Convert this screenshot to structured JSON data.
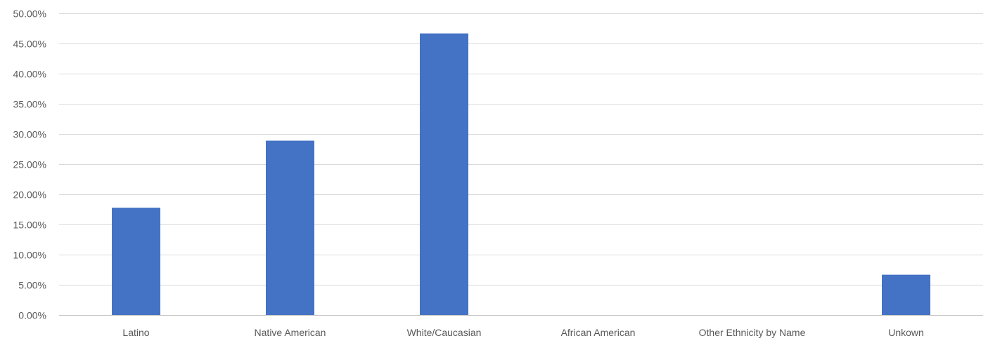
{
  "chart_data": {
    "type": "bar",
    "title": "",
    "xlabel": "",
    "ylabel": "",
    "categories": [
      "Latino",
      "Native American",
      "White/Caucasian",
      "African American",
      "Other Ethnicity by Name",
      "Unkown"
    ],
    "values": [
      17.78,
      28.89,
      46.67,
      0,
      0,
      6.67
    ],
    "ylim": [
      0,
      50
    ],
    "y_ticks": [
      0,
      5,
      10,
      15,
      20,
      25,
      30,
      35,
      40,
      45,
      50
    ],
    "y_tick_labels": [
      "0.00%",
      "5.00%",
      "10.00%",
      "15.00%",
      "20.00%",
      "25.00%",
      "30.00%",
      "35.00%",
      "40.00%",
      "45.00%",
      "50.00%"
    ],
    "grid": true,
    "legend": "none",
    "bar_color": "#4472C4"
  }
}
